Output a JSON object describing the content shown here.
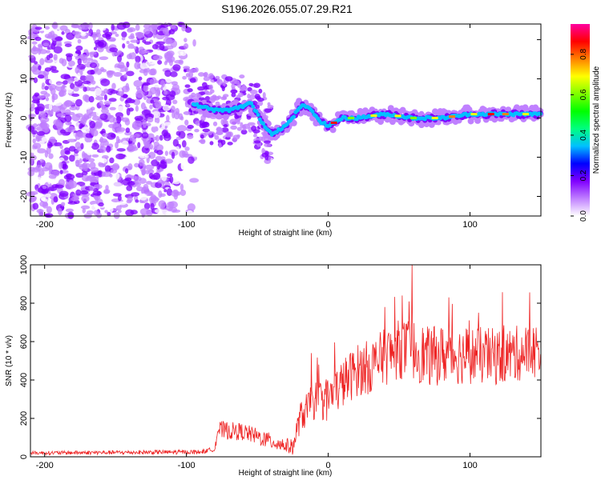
{
  "title": "S196.2026.055.07.29.R21",
  "chart_data": [
    {
      "type": "heatmap",
      "name": "spectrogram",
      "xlabel": "Height of straight line (km)",
      "ylabel": "Frequency (Hz)",
      "xlim": [
        -210,
        150
      ],
      "ylim": [
        -25,
        24
      ],
      "xticks": [
        -200,
        -100,
        0,
        100
      ],
      "yticks": [
        -20,
        -10,
        0,
        10,
        20
      ],
      "colorbar": {
        "label": "Normalized spectral amplitude",
        "range": [
          0,
          0.95
        ],
        "ticks": [
          0.0,
          0.2,
          0.4,
          0.6,
          0.8
        ],
        "tick_labels": [
          "0.0",
          "0.2",
          "0.4",
          "0.6",
          "0.8"
        ],
        "colors": [
          "#ffffff",
          "#c080ff",
          "#8000ff",
          "#0000ff",
          "#00c0ff",
          "#00ff80",
          "#00ff00",
          "#80ff00",
          "#ffff00",
          "#ff8000",
          "#ff0000",
          "#ff00a0"
        ]
      },
      "trace": {
        "description": "dominant frequency ridge",
        "x": [
          -100,
          -90,
          -80,
          -70,
          -60,
          -55,
          -50,
          -45,
          -40,
          -35,
          -30,
          -25,
          -20,
          -15,
          -10,
          -5,
          0,
          10,
          20,
          40,
          60,
          80,
          100,
          120,
          150
        ],
        "y": [
          4,
          3,
          2,
          2,
          3,
          4,
          1,
          -2,
          -4,
          -3,
          -2,
          0,
          3,
          3,
          1,
          -1,
          -2,
          0,
          0,
          1,
          0,
          0,
          1,
          1,
          1
        ]
      }
    },
    {
      "type": "line",
      "name": "snr",
      "xlabel": "Height of straight line (km)",
      "ylabel": "SNR (10 * v/v)",
      "xlim": [
        -210,
        150
      ],
      "ylim": [
        0,
        1000
      ],
      "xticks": [
        -200,
        -100,
        0,
        100
      ],
      "yticks": [
        0,
        200,
        400,
        600,
        800,
        1000
      ],
      "color": "#ee2222",
      "envelope": {
        "x": [
          -210,
          -90,
          -80,
          -78,
          -60,
          -40,
          -25,
          -20,
          -10,
          0,
          10,
          20,
          30,
          40,
          50,
          60,
          70,
          80,
          100,
          120,
          150
        ],
        "y": [
          20,
          25,
          40,
          140,
          130,
          80,
          50,
          200,
          290,
          300,
          380,
          450,
          470,
          520,
          560,
          560,
          520,
          530,
          530,
          520,
          560
        ]
      },
      "spread": {
        "x": [
          -210,
          -80,
          -78,
          -25,
          -20,
          0,
          30,
          60,
          150
        ],
        "y": [
          12,
          15,
          60,
          50,
          100,
          150,
          180,
          200,
          180
        ]
      },
      "peaks": [
        {
          "x": 59,
          "y": 1000
        },
        {
          "x": 52,
          "y": 840
        },
        {
          "x": 85,
          "y": 830
        },
        {
          "x": -12,
          "y": 540
        },
        {
          "x": 40,
          "y": 780
        }
      ]
    }
  ]
}
